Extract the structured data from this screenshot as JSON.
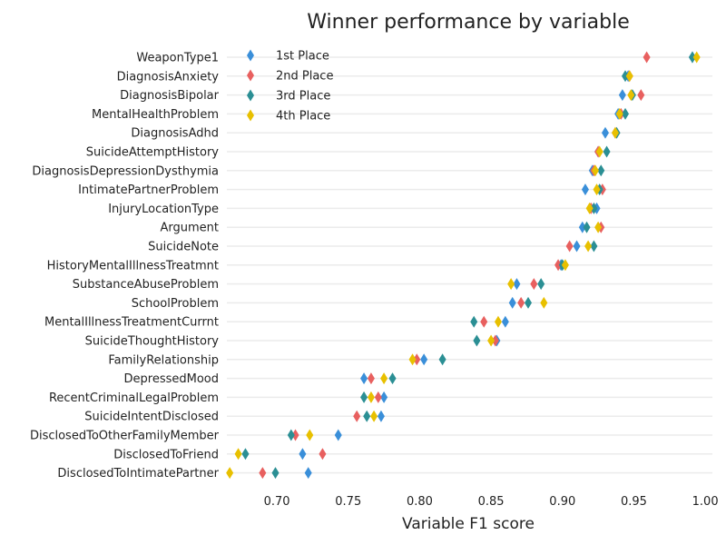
{
  "chart_data": {
    "type": "scatter",
    "title": "Winner performance by variable",
    "xlabel": "Variable F1 score",
    "ylabel": "",
    "xlim": [
      0.665,
      1.005
    ],
    "xticks": [
      "0.70",
      "0.75",
      "0.80",
      "0.85",
      "0.90",
      "0.95",
      "1.00"
    ],
    "xtick_values": [
      0.7,
      0.75,
      0.8,
      0.85,
      0.9,
      0.95,
      1.0
    ],
    "legend_position": "top-left",
    "grid": "horizontal",
    "categories": [
      "WeaponType1",
      "DiagnosisAnxiety",
      "DiagnosisBipolar",
      "MentalHealthProblem",
      "DiagnosisAdhd",
      "SuicideAttemptHistory",
      "DiagnosisDepressionDysthymia",
      "IntimatePartnerProblem",
      "InjuryLocationType",
      "Argument",
      "SuicideNote",
      "HistoryMentalIllnessTreatmnt",
      "SubstanceAbuseProblem",
      "SchoolProblem",
      "MentalIllnessTreatmentCurrnt",
      "SuicideThoughtHistory",
      "FamilyRelationship",
      "DepressedMood",
      "RecentCriminalLegalProblem",
      "SuicideIntentDisclosed",
      "DisclosedToOtherFamilyMember",
      "DisclosedToFriend",
      "DisclosedToIntimatePartner"
    ],
    "series": [
      {
        "name": "1st Place",
        "color": "#3a8fd9",
        "values": [
          0.991,
          0.946,
          0.942,
          0.939,
          0.93,
          0.925,
          0.921,
          0.916,
          0.924,
          0.914,
          0.91,
          0.899,
          0.868,
          0.865,
          0.86,
          0.854,
          0.803,
          0.761,
          0.775,
          0.773,
          0.743,
          0.718,
          0.722
        ]
      },
      {
        "name": "2nd Place",
        "color": "#e8605f",
        "values": [
          0.959,
          0.947,
          0.955,
          0.941,
          0.937,
          0.925,
          0.922,
          0.928,
          0.92,
          0.927,
          0.905,
          0.897,
          0.88,
          0.871,
          0.845,
          0.853,
          0.798,
          0.766,
          0.771,
          0.756,
          0.713,
          0.732,
          0.69
        ]
      },
      {
        "name": "3rd Place",
        "color": "#2b8f94",
        "values": [
          0.991,
          0.944,
          0.949,
          0.944,
          0.938,
          0.931,
          0.927,
          0.926,
          0.922,
          0.917,
          0.922,
          0.9,
          0.885,
          0.876,
          0.838,
          0.84,
          0.816,
          0.781,
          0.761,
          0.763,
          0.71,
          0.678,
          0.699
        ]
      },
      {
        "name": "4th Place",
        "color": "#e8c000",
        "values": [
          0.994,
          0.947,
          0.948,
          0.94,
          0.937,
          0.926,
          0.923,
          0.924,
          0.919,
          0.925,
          0.918,
          0.902,
          0.864,
          0.887,
          0.855,
          0.85,
          0.795,
          0.775,
          0.766,
          0.768,
          0.723,
          0.673,
          0.667
        ]
      }
    ]
  }
}
